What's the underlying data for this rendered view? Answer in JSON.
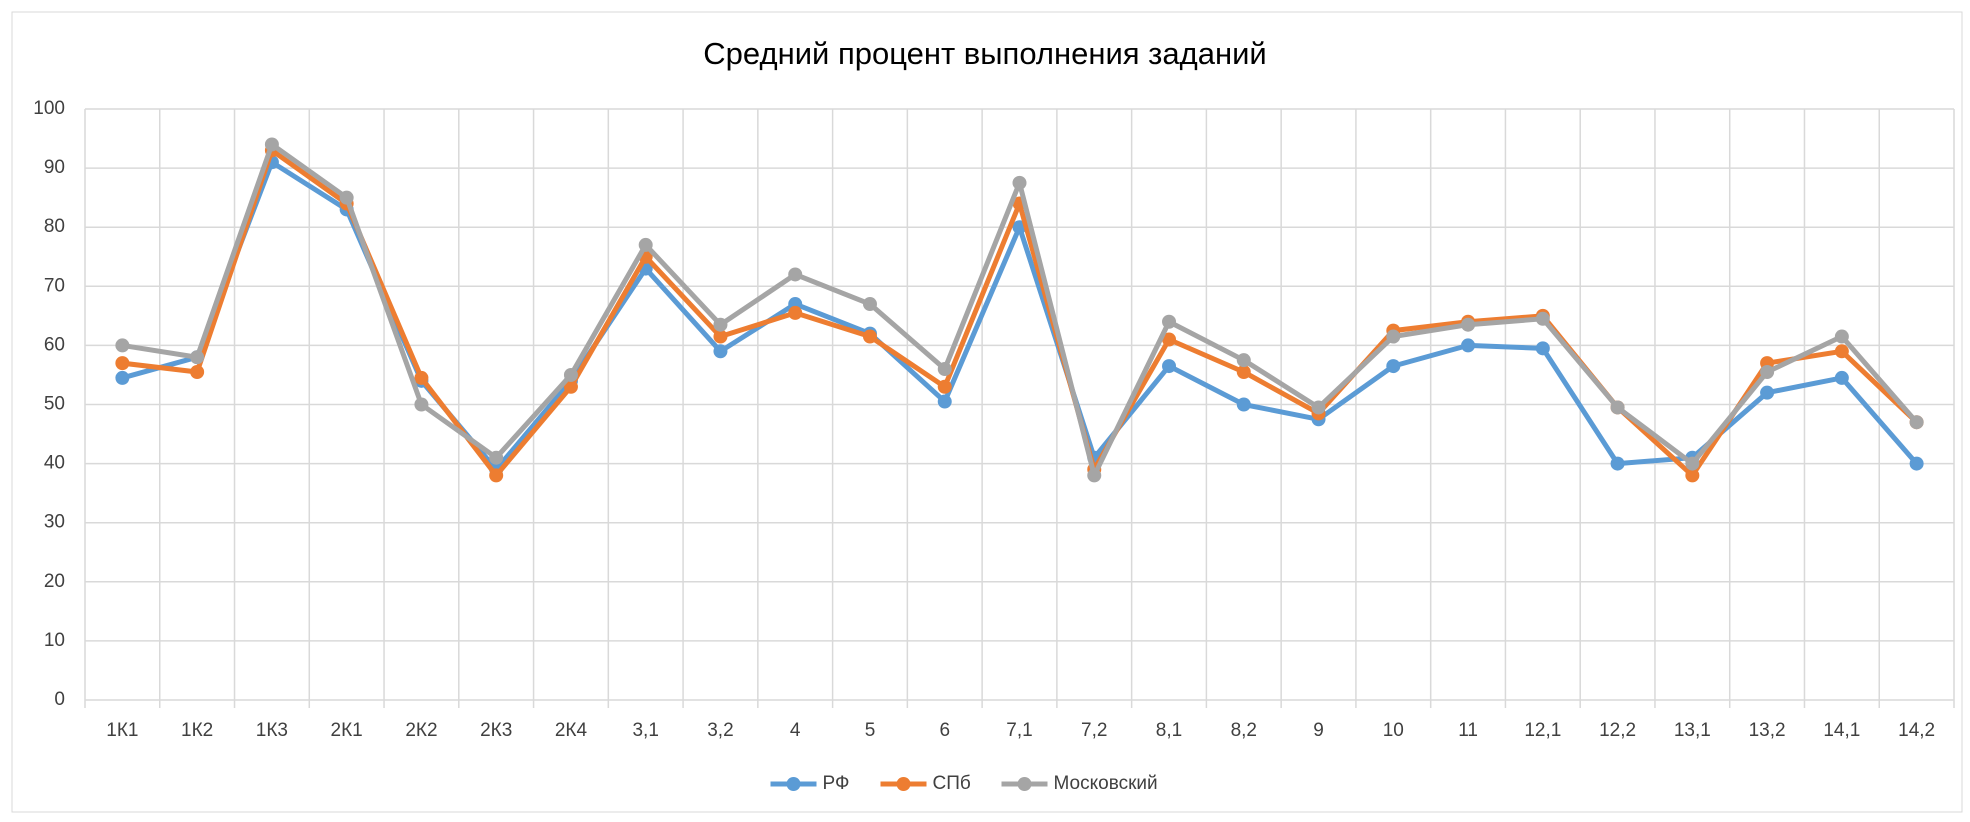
{
  "chart_data": {
    "type": "line",
    "title": "Средний процент выполнения заданий",
    "categories": [
      "1К1",
      "1К2",
      "1К3",
      "2К1",
      "2К2",
      "2К3",
      "2К4",
      "3,1",
      "3,2",
      "4",
      "5",
      "6",
      "7,1",
      "7,2",
      "8,1",
      "8,2",
      "9",
      "10",
      "11",
      "12,1",
      "12,2",
      "13,1",
      "13,2",
      "14,1",
      "14,2"
    ],
    "series": [
      {
        "name": "РФ",
        "color": "#5b9bd5",
        "values": [
          54.5,
          58,
          91,
          83,
          54,
          39,
          54,
          73,
          59,
          67,
          62,
          50.5,
          80,
          41,
          56.5,
          50,
          47.5,
          56.5,
          60,
          59.5,
          40,
          41,
          52,
          54.5,
          40
        ]
      },
      {
        "name": "СПб",
        "color": "#ed7d31",
        "values": [
          57,
          55.5,
          93,
          84,
          54.5,
          38,
          53,
          75,
          61.5,
          65.5,
          61.5,
          53,
          84,
          39,
          61,
          55.5,
          48.5,
          62.5,
          64,
          65,
          49.5,
          38,
          57,
          59,
          47
        ]
      },
      {
        "name": "Московский",
        "color": "#a5a5a5",
        "values": [
          60,
          58,
          94,
          85,
          50,
          41,
          55,
          77,
          63.5,
          72,
          67,
          56,
          87.5,
          38,
          64,
          57.5,
          49.5,
          61.5,
          63.5,
          64.5,
          49.5,
          40,
          55.5,
          61.5,
          47
        ]
      }
    ],
    "ylim": [
      0,
      100
    ],
    "yticks": [
      0,
      10,
      20,
      30,
      40,
      50,
      60,
      70,
      80,
      90,
      100
    ],
    "grid": true,
    "legend": "bottom"
  }
}
